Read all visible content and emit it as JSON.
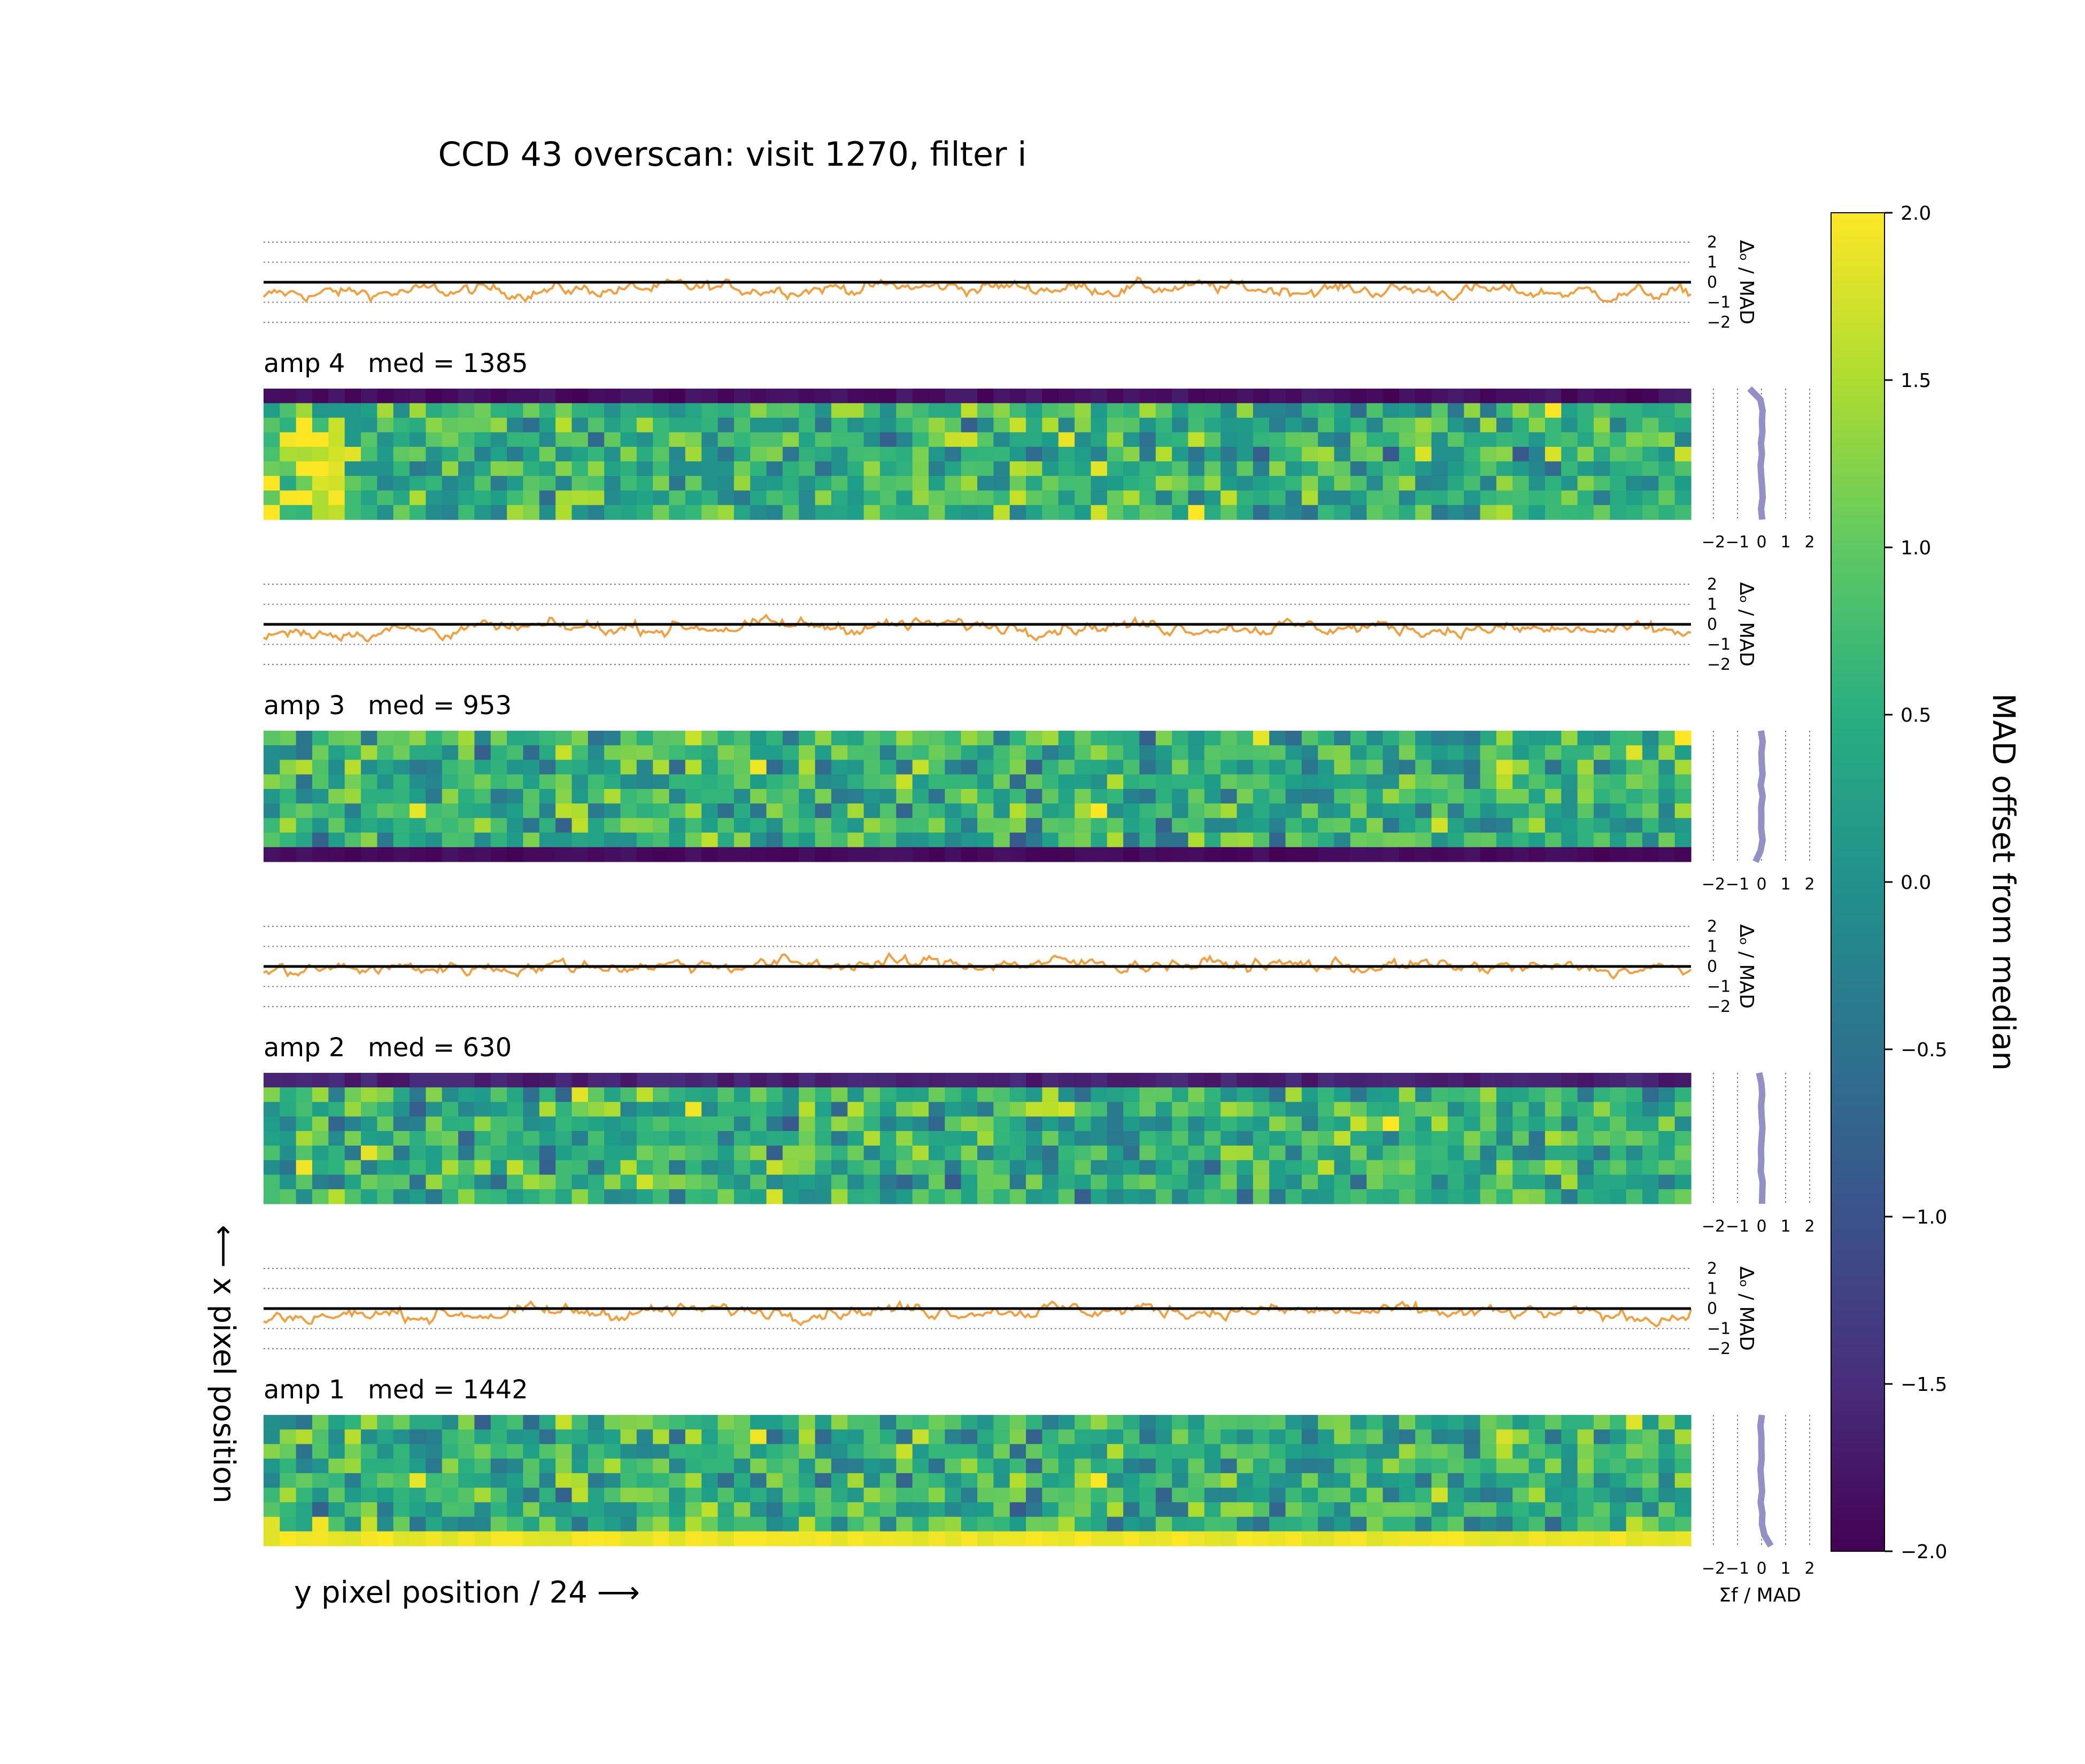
{
  "title": "CCD 43 overscan: visit 1270, filter i",
  "colors": {
    "profile": "#f0a040",
    "side_profile": "#9390c6",
    "zero_line": "#000000",
    "grid": "#808080"
  },
  "colorbar": {
    "label": "MAD offset from median",
    "colormap": "viridis",
    "range": [
      -2.0,
      2.0
    ],
    "ticks": [
      "2.0",
      "1.5",
      "1.0",
      "0.5",
      "0.0",
      "−0.5",
      "−1.0",
      "−1.5",
      "−2.0"
    ]
  },
  "axes": {
    "xlabel": "y pixel position / 24 ⟶",
    "ylabel": "⟵ x pixel position",
    "profile_ylabel": "Δₒ / MAD",
    "side_xlabel": "Σf / MAD",
    "profile_ticks": [
      "2",
      "1",
      "0",
      "−1",
      "−2"
    ],
    "side_ticks": [
      "−2",
      "−1",
      "0",
      "1",
      "2"
    ]
  },
  "amps": [
    {
      "label": "amp 4",
      "med_label": "med = 1385"
    },
    {
      "label": "amp 3",
      "med_label": "med = 953"
    },
    {
      "label": "amp 2",
      "med_label": "med = 630"
    },
    {
      "label": "amp 1",
      "med_label": "med = 1442"
    }
  ],
  "chart_data": {
    "type": "heatmap",
    "panels": 4,
    "heatmap_columns": 88,
    "heatmap_rows": 9,
    "value_range": [
      -2.0,
      2.0
    ],
    "profile_ylim": [
      -2,
      2
    ],
    "side_xlim": [
      -2,
      2
    ],
    "edge_rows": [
      {
        "amp": "amp 4",
        "first_row": -2.0
      },
      {
        "amp": "amp 3",
        "last_row": -2.0
      },
      {
        "amp": "amp 2",
        "first_row": -1.8
      },
      {
        "amp": "amp 1",
        "last_row": 2.0
      }
    ],
    "profile_mean": [
      -0.6,
      -0.4,
      -0.2,
      -0.4
    ]
  }
}
